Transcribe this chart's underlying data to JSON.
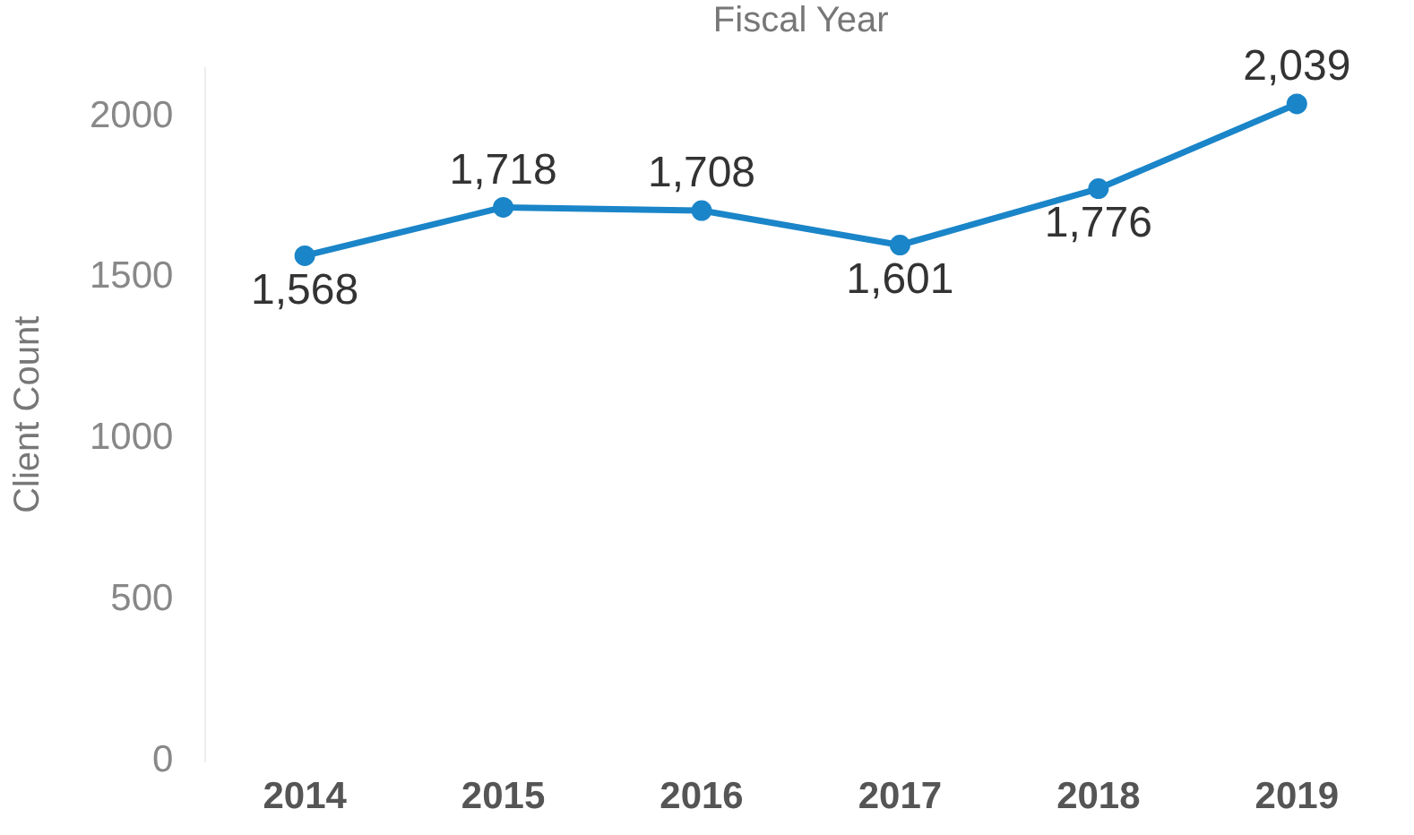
{
  "chart_data": {
    "type": "line",
    "xlabel": "Fiscal Year",
    "ylabel": "Client Count",
    "categories": [
      "2014",
      "2015",
      "2016",
      "2017",
      "2018",
      "2019"
    ],
    "series": [
      {
        "color": "#1a85c8",
        "values": [
          1568,
          1718,
          1708,
          1601,
          1776,
          2039
        ],
        "value_labels": [
          "1,568",
          "1,718",
          "1,708",
          "1,601",
          "1,776",
          "2,039"
        ]
      }
    ],
    "ylim": [
      0,
      2150
    ],
    "yticks": [
      0,
      500,
      1000,
      1500,
      2000
    ],
    "grid": false,
    "legend": false,
    "marker": "circle",
    "line_style": "solid"
  }
}
